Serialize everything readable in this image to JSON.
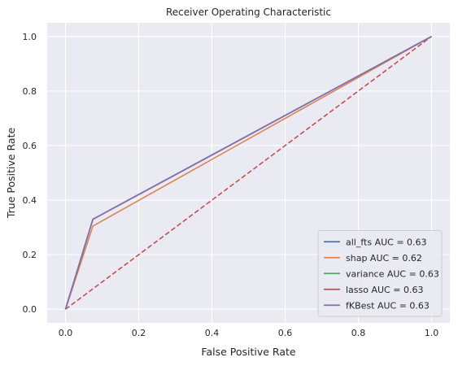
{
  "chart_data": {
    "type": "line",
    "title": "Receiver Operating Characteristic",
    "xlabel": "False Positive Rate",
    "ylabel": "True Positive Rate",
    "xlim": [
      -0.05,
      1.05
    ],
    "ylim": [
      -0.05,
      1.05
    ],
    "xticks": [
      "0.0",
      "0.2",
      "0.4",
      "0.6",
      "0.8",
      "1.0"
    ],
    "yticks": [
      "0.0",
      "0.2",
      "0.4",
      "0.6",
      "0.8",
      "1.0"
    ],
    "grid": true,
    "legend_position": "lower-right",
    "series": [
      {
        "name": "all_fts AUC = 0.63",
        "color": "#4c72b0",
        "x": [
          0,
          0.075,
          1
        ],
        "y": [
          0,
          0.33,
          1
        ]
      },
      {
        "name": "shap AUC = 0.62",
        "color": "#dd8452",
        "x": [
          0,
          0.075,
          1
        ],
        "y": [
          0,
          0.305,
          1
        ]
      },
      {
        "name": "variance AUC = 0.63",
        "color": "#55a868",
        "x": [
          0,
          0.075,
          1
        ],
        "y": [
          0,
          0.33,
          1
        ]
      },
      {
        "name": "lasso AUC = 0.63",
        "color": "#c44e52",
        "x": [
          0,
          0.075,
          1
        ],
        "y": [
          0,
          0.33,
          1
        ]
      },
      {
        "name": "fKBest AUC = 0.63",
        "color": "#8172b3",
        "x": [
          0,
          0.075,
          1
        ],
        "y": [
          0,
          0.33,
          1
        ]
      }
    ],
    "reference_line": {
      "x": [
        0,
        1
      ],
      "y": [
        0,
        1
      ],
      "color": "#c44e52",
      "style": "dashed"
    }
  }
}
